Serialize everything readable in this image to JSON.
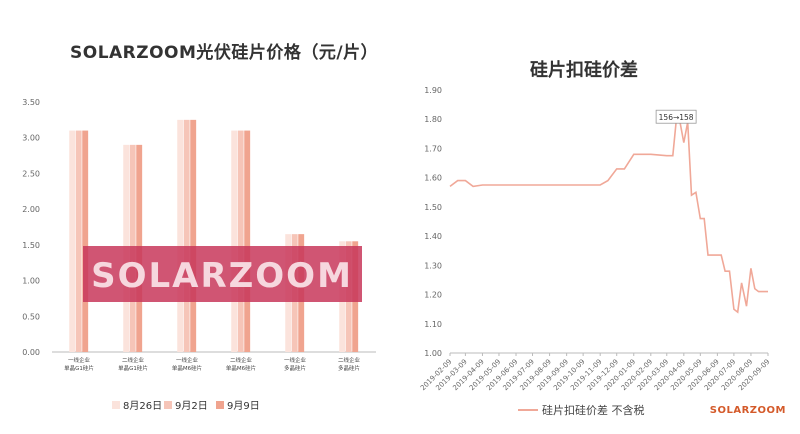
{
  "chart_data": [
    {
      "type": "bar",
      "title": "SOLARZOOM光伏硅片价格（元/片）",
      "categories": [
        [
          "一线企业",
          "单晶G1硅片"
        ],
        [
          "二线企业",
          "单晶G1硅片"
        ],
        [
          "一线企业",
          "单晶M6硅片"
        ],
        [
          "二线企业",
          "单晶M6硅片"
        ],
        [
          "一线企业",
          "多晶硅片"
        ],
        [
          "二线企业",
          "多晶硅片"
        ]
      ],
      "series": [
        {
          "name": "8月26日",
          "color": "#fbe3dc",
          "values": [
            3.1,
            2.9,
            3.25,
            3.1,
            1.65,
            1.55
          ]
        },
        {
          "name": "9月2日",
          "color": "#f6c5b8",
          "values": [
            3.1,
            2.9,
            3.25,
            3.1,
            1.65,
            1.55
          ]
        },
        {
          "name": "9月9日",
          "color": "#f0a48f",
          "values": [
            3.1,
            2.9,
            3.25,
            3.1,
            1.65,
            1.55
          ]
        }
      ],
      "ylim": [
        0,
        3.5
      ],
      "yticks": [
        "0.00",
        "0.50",
        "1.00",
        "1.50",
        "2.00",
        "2.50",
        "3.00",
        "3.50"
      ],
      "legend_position": "bottom",
      "watermark": "SOLARZOOM"
    },
    {
      "type": "line",
      "title": "硅片扣硅价差",
      "x": [
        "2019-02-09",
        "2019-02-23",
        "2019-03-09",
        "2019-03-23",
        "2019-04-09",
        "2019-05-09",
        "2019-06-09",
        "2019-07-09",
        "2019-08-09",
        "2019-09-09",
        "2019-10-09",
        "2019-11-09",
        "2019-11-23",
        "2019-12-09",
        "2019-12-23",
        "2020-01-09",
        "2020-02-09",
        "2020-03-09",
        "2020-03-20",
        "2020-03-26",
        "2020-04-02",
        "2020-04-09",
        "2020-04-16",
        "2020-04-23",
        "2020-05-01",
        "2020-05-09",
        "2020-05-16",
        "2020-05-23",
        "2020-06-09",
        "2020-06-16",
        "2020-06-23",
        "2020-07-01",
        "2020-07-09",
        "2020-07-16",
        "2020-07-23",
        "2020-08-01",
        "2020-08-09",
        "2020-08-16",
        "2020-08-23",
        "2020-09-01",
        "2020-09-09"
      ],
      "series": [
        {
          "name": "硅片扣硅价差 不含税",
          "color": "#f0a898",
          "values": [
            1.57,
            1.59,
            1.59,
            1.57,
            1.575,
            1.575,
            1.575,
            1.575,
            1.575,
            1.575,
            1.575,
            1.575,
            1.59,
            1.63,
            1.63,
            1.68,
            1.68,
            1.675,
            1.675,
            1.79,
            1.79,
            1.72,
            1.79,
            1.54,
            1.55,
            1.46,
            1.46,
            1.335,
            1.335,
            1.335,
            1.28,
            1.28,
            1.15,
            1.14,
            1.24,
            1.16,
            1.29,
            1.22,
            1.21,
            1.21,
            1.21
          ]
        }
      ],
      "ylim": [
        1.0,
        1.9
      ],
      "yticks": [
        "1.00",
        "1.10",
        "1.20",
        "1.30",
        "1.40",
        "1.50",
        "1.60",
        "1.70",
        "1.80",
        "1.90"
      ],
      "xticks": [
        "2019-02-09",
        "2019-03-09",
        "2019-04-09",
        "2019-05-09",
        "2019-06-09",
        "2019-07-09",
        "2019-08-09",
        "2019-09-09",
        "2019-10-09",
        "2019-11-09",
        "2019-12-09",
        "2020-01-09",
        "2020-02-09",
        "2020-03-09",
        "2020-04-09",
        "2020-05-09",
        "2020-06-09",
        "2020-07-09",
        "2020-08-09",
        "2020-09-09"
      ],
      "annotation": {
        "text": "156→158",
        "x": "2020-03-26",
        "y": 1.8
      },
      "legend_position": "bottom"
    }
  ],
  "brand": "SOLARZOOM"
}
